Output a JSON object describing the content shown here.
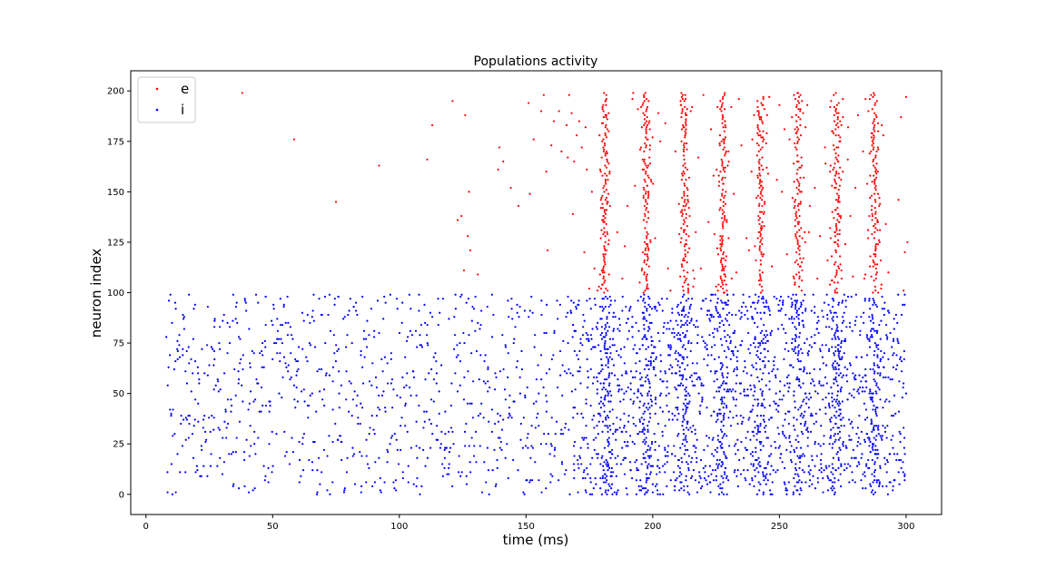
{
  "chart_data": {
    "type": "scatter",
    "title": "Populations activity",
    "xlabel": "time (ms)",
    "ylabel": "neuron index",
    "xlim": [
      -6,
      314
    ],
    "ylim": [
      -10,
      210
    ],
    "xticks": [
      0,
      50,
      100,
      150,
      200,
      250,
      300
    ],
    "yticks": [
      0,
      25,
      50,
      75,
      100,
      125,
      150,
      175,
      200
    ],
    "grid": false,
    "legend_position": "upper-left",
    "series": [
      {
        "name": "e",
        "color": "#ff0000",
        "neuron_range": [
          100,
          199
        ],
        "sparse_spikes": [
          [
            38.0,
            199
          ],
          [
            58.5,
            176
          ],
          [
            75.0,
            145
          ],
          [
            92.0,
            163
          ],
          [
            111.0,
            166
          ],
          [
            113.0,
            183
          ],
          [
            121.0,
            195
          ],
          [
            123.0,
            136
          ],
          [
            124.5,
            138
          ],
          [
            125.5,
            111
          ],
          [
            126.0,
            188
          ],
          [
            127.0,
            128
          ],
          [
            127.5,
            150
          ],
          [
            128.0,
            121
          ],
          [
            131.0,
            109
          ],
          [
            139.0,
            161
          ],
          [
            139.5,
            172
          ],
          [
            141.0,
            165
          ],
          [
            144.0,
            152
          ],
          [
            147.0,
            143
          ],
          [
            151.0,
            194
          ],
          [
            151.5,
            149
          ],
          [
            153.0,
            176
          ],
          [
            156.0,
            190
          ],
          [
            157.0,
            198
          ],
          [
            158.0,
            160
          ],
          [
            158.5,
            121
          ],
          [
            160.0,
            173
          ],
          [
            161.0,
            185
          ],
          [
            163.0,
            190
          ],
          [
            164.0,
            170
          ],
          [
            166.0,
            183
          ],
          [
            166.5,
            167
          ],
          [
            167.0,
            198
          ],
          [
            168.0,
            189
          ],
          [
            168.5,
            139
          ],
          [
            169.0,
            165
          ],
          [
            170.0,
            178
          ],
          [
            171.0,
            185
          ],
          [
            172.0,
            172
          ],
          [
            173.0,
            120
          ],
          [
            173.5,
            182
          ],
          [
            174.0,
            161
          ],
          [
            175.0,
            102
          ],
          [
            176.0,
            150
          ],
          [
            177.0,
            112
          ],
          [
            186.0,
            130
          ],
          [
            188.0,
            107
          ],
          [
            189.0,
            123
          ],
          [
            190.0,
            143
          ],
          [
            192.0,
            196
          ],
          [
            193.0,
            153
          ],
          [
            203.0,
            175
          ],
          [
            205.0,
            184
          ],
          [
            206.0,
            112
          ],
          [
            207.0,
            101
          ],
          [
            209.0,
            170
          ],
          [
            214.0,
            145
          ],
          [
            215.0,
            190
          ],
          [
            216.0,
            103
          ],
          [
            217.0,
            130
          ],
          [
            218.0,
            167
          ],
          [
            219.0,
            112
          ],
          [
            220.0,
            198
          ],
          [
            222.0,
            135
          ],
          [
            223.0,
            181
          ],
          [
            224.0,
            158
          ],
          [
            226.0,
            104
          ],
          [
            231.0,
            192
          ],
          [
            232.0,
            149
          ],
          [
            233.0,
            110
          ],
          [
            234.0,
            196
          ],
          [
            235.0,
            173
          ],
          [
            237.0,
            127
          ],
          [
            238.0,
            121
          ],
          [
            239.0,
            160
          ],
          [
            240.0,
            188
          ],
          [
            244.0,
            140
          ],
          [
            245.0,
            162
          ],
          [
            246.0,
            197
          ],
          [
            247.0,
            113
          ],
          [
            249.0,
            156
          ],
          [
            250.0,
            193
          ],
          [
            251.0,
            150
          ],
          [
            252.0,
            181
          ],
          [
            253.0,
            119
          ],
          [
            254.0,
            176
          ],
          [
            260.0,
            130
          ],
          [
            261.0,
            193
          ],
          [
            262.0,
            143
          ],
          [
            264.0,
            152
          ],
          [
            265.0,
            107
          ],
          [
            266.0,
            128
          ],
          [
            268.0,
            172
          ],
          [
            269.0,
            116
          ],
          [
            270.0,
            160
          ],
          [
            271.0,
            180
          ],
          [
            276.0,
            124
          ],
          [
            277.0,
            166
          ],
          [
            278.0,
            138
          ],
          [
            279.0,
            108
          ],
          [
            280.0,
            152
          ],
          [
            281.0,
            188
          ],
          [
            283.0,
            170
          ],
          [
            284.0,
            196
          ],
          [
            285.0,
            131
          ],
          [
            290.0,
            116
          ],
          [
            291.0,
            178
          ],
          [
            292.0,
            134
          ],
          [
            293.0,
            110
          ],
          [
            297.0,
            146
          ],
          [
            298.0,
            187
          ],
          [
            299.0,
            101
          ],
          [
            299.5,
            120
          ],
          [
            300.0,
            197
          ],
          [
            300.5,
            125
          ]
        ],
        "bursts": [
          {
            "center": 181.0,
            "spread": 1.8,
            "coverage": 0.85
          },
          {
            "center": 197.5,
            "spread": 1.8,
            "coverage": 0.85
          },
          {
            "center": 212.5,
            "spread": 2.0,
            "coverage": 0.85
          },
          {
            "center": 227.5,
            "spread": 1.6,
            "coverage": 0.85
          },
          {
            "center": 242.5,
            "spread": 1.6,
            "coverage": 0.85
          },
          {
            "center": 257.5,
            "spread": 1.8,
            "coverage": 0.85
          },
          {
            "center": 272.5,
            "spread": 1.8,
            "coverage": 0.85
          },
          {
            "center": 287.5,
            "spread": 1.6,
            "coverage": 0.85
          }
        ]
      },
      {
        "name": "i",
        "color": "#0000ff",
        "neuron_range": [
          0,
          99
        ],
        "background_rate_per_ms": 5.5,
        "background_start": 8,
        "background_end": 300,
        "dense_from": 168,
        "dense_rate_per_ms": 11,
        "bursts": [
          {
            "center": 181.5,
            "spread": 3.0,
            "coverage": 0.75
          },
          {
            "center": 197.5,
            "spread": 3.5,
            "coverage": 0.75
          },
          {
            "center": 212.5,
            "spread": 3.5,
            "coverage": 0.75
          },
          {
            "center": 227.5,
            "spread": 3.5,
            "coverage": 0.75
          },
          {
            "center": 242.5,
            "spread": 3.5,
            "coverage": 0.75
          },
          {
            "center": 257.5,
            "spread": 3.5,
            "coverage": 0.75
          },
          {
            "center": 272.5,
            "spread": 3.5,
            "coverage": 0.75
          },
          {
            "center": 287.5,
            "spread": 3.5,
            "coverage": 0.75
          }
        ]
      }
    ]
  }
}
